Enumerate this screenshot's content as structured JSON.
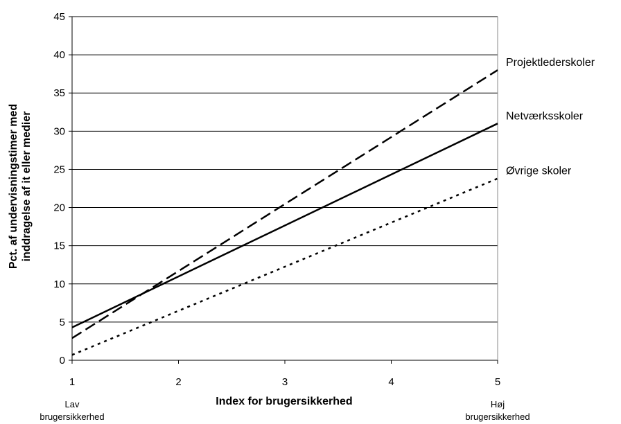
{
  "chart_data": {
    "type": "line",
    "title": "",
    "xlabel": "Index for brugersikkerhed",
    "ylabel_line1": "Pct. af undervisningstimer med",
    "ylabel_line2": "inddragelse af it eller medier",
    "x_end_labels": {
      "low_line1": "Lav",
      "low_line2": "brugersikkerhed",
      "high_line1": "Høj",
      "high_line2": "brugersikkerhed"
    },
    "xlim": [
      1,
      5
    ],
    "ylim": [
      0,
      45
    ],
    "x_ticks": [
      1,
      2,
      3,
      4,
      5
    ],
    "y_ticks": [
      0,
      5,
      10,
      15,
      20,
      25,
      30,
      35,
      40,
      45
    ],
    "grid": "horizontal",
    "legend": "inline-right",
    "series": [
      {
        "name": "Projektlederskoler",
        "style": "dashed",
        "x": [
          1,
          5
        ],
        "y": [
          2.9,
          38.0
        ]
      },
      {
        "name": "Netværksskoler",
        "style": "solid",
        "x": [
          1,
          5
        ],
        "y": [
          4.3,
          31.0
        ]
      },
      {
        "name": "Øvrige skoler",
        "style": "dotted",
        "x": [
          1,
          5
        ],
        "y": [
          0.7,
          23.8
        ]
      }
    ]
  }
}
